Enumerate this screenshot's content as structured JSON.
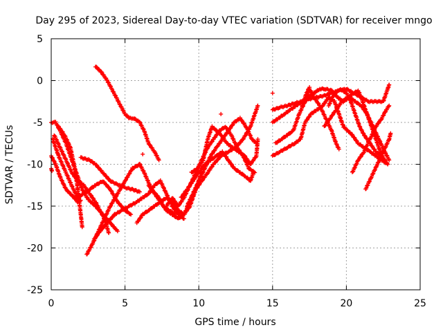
{
  "chart_data": {
    "type": "scatter",
    "title": "Day 295 of 2023, Sidereal Day-to-day VTEC variation (SDTVAR) for receiver mngo",
    "xlabel": "GPS time / hours",
    "ylabel": "SDTVAR / TECUs",
    "xlim": [
      0,
      25
    ],
    "ylim": [
      -25,
      5
    ],
    "xticks": [
      0,
      5,
      10,
      15,
      20,
      25
    ],
    "yticks": [
      -25,
      -20,
      -15,
      -10,
      -5,
      0,
      5
    ],
    "grid": true,
    "marker": "plus",
    "series_color": "#ff0000",
    "traces": [
      [
        [
          0.0,
          -5.0
        ],
        [
          0.3,
          -5.0
        ],
        [
          0.6,
          -6.0
        ],
        [
          1.0,
          -7.5
        ],
        [
          1.4,
          -9.5
        ],
        [
          1.8,
          -11.5
        ],
        [
          2.1,
          -13.0
        ],
        [
          2.5,
          -14.2
        ],
        [
          3.0,
          -15.0
        ],
        [
          3.5,
          -16.0
        ],
        [
          4.0,
          -17.0
        ],
        [
          4.5,
          -18.0
        ]
      ],
      [
        [
          0.1,
          -7.0
        ],
        [
          0.5,
          -9.0
        ],
        [
          1.0,
          -11.0
        ],
        [
          1.5,
          -13.0
        ],
        [
          1.8,
          -14.0
        ],
        [
          2.2,
          -13.5
        ],
        [
          2.6,
          -13.0
        ],
        [
          3.0,
          -12.5
        ],
        [
          3.5,
          -12.0
        ],
        [
          4.0,
          -13.0
        ],
        [
          4.5,
          -14.5
        ],
        [
          5.0,
          -15.5
        ],
        [
          5.4,
          -16.0
        ]
      ],
      [
        [
          0.0,
          -9.0
        ],
        [
          0.3,
          -10.0
        ],
        [
          0.6,
          -11.5
        ],
        [
          1.0,
          -13.0
        ],
        [
          1.4,
          -13.7
        ],
        [
          1.8,
          -14.5
        ],
        [
          2.0,
          -14.3
        ]
      ],
      [
        [
          0.5,
          -5.5
        ],
        [
          0.9,
          -6.5
        ],
        [
          1.3,
          -8.0
        ],
        [
          1.6,
          -10.5
        ],
        [
          1.8,
          -13.0
        ],
        [
          2.0,
          -16.0
        ],
        [
          2.1,
          -17.5
        ]
      ],
      [
        [
          0.2,
          -6.5
        ],
        [
          0.6,
          -8.0
        ],
        [
          1.0,
          -9.5
        ],
        [
          1.4,
          -11.0
        ],
        [
          1.8,
          -12.0
        ],
        [
          2.2,
          -12.5
        ],
        [
          2.6,
          -13.5
        ],
        [
          3.0,
          -14.5
        ],
        [
          3.3,
          -15.5
        ],
        [
          3.6,
          -16.5
        ],
        [
          3.9,
          -18.2
        ]
      ],
      [
        [
          0.0,
          -10.5
        ],
        [
          0.05,
          -10.8
        ]
      ],
      [
        [
          2.4,
          -20.8
        ],
        [
          2.8,
          -19.5
        ],
        [
          3.2,
          -18.0
        ],
        [
          3.6,
          -16.5
        ],
        [
          4.0,
          -15.0
        ],
        [
          4.5,
          -13.5
        ],
        [
          5.0,
          -12.0
        ],
        [
          5.5,
          -10.5
        ],
        [
          6.0,
          -10.0
        ],
        [
          6.3,
          -11.0
        ],
        [
          6.8,
          -13.0
        ],
        [
          7.3,
          -14.0
        ],
        [
          7.6,
          -15.0
        ],
        [
          8.0,
          -15.5
        ],
        [
          8.4,
          -16.0
        ]
      ],
      [
        [
          2.0,
          -9.2
        ],
        [
          2.6,
          -9.5
        ],
        [
          3.0,
          -10.0
        ],
        [
          3.5,
          -11.0
        ],
        [
          4.0,
          -12.0
        ],
        [
          4.6,
          -12.5
        ],
        [
          5.0,
          -12.8
        ],
        [
          5.5,
          -13.0
        ],
        [
          6.0,
          -13.3
        ]
      ],
      [
        [
          2.9,
          -19.0
        ],
        [
          3.3,
          -18.0
        ],
        [
          3.8,
          -17.0
        ],
        [
          4.3,
          -16.0
        ],
        [
          4.8,
          -15.5
        ],
        [
          5.3,
          -15.0
        ],
        [
          5.8,
          -14.5
        ],
        [
          6.2,
          -14.0
        ],
        [
          6.6,
          -13.5
        ],
        [
          7.0,
          -12.5
        ],
        [
          7.4,
          -12.0
        ],
        [
          7.8,
          -13.5
        ],
        [
          8.2,
          -15.0
        ],
        [
          8.6,
          -16.0
        ],
        [
          9.0,
          -16.5
        ]
      ],
      [
        [
          3.0,
          1.7
        ],
        [
          3.4,
          1.0
        ],
        [
          3.8,
          0.0
        ],
        [
          4.1,
          -1.0
        ],
        [
          4.4,
          -2.0
        ],
        [
          4.7,
          -3.0
        ],
        [
          5.0,
          -4.0
        ],
        [
          5.3,
          -4.5
        ],
        [
          5.6,
          -4.5
        ],
        [
          6.0,
          -5.0
        ],
        [
          6.3,
          -6.0
        ],
        [
          6.6,
          -7.5
        ],
        [
          7.0,
          -8.5
        ],
        [
          7.3,
          -9.5
        ]
      ],
      [
        [
          5.8,
          -17.0
        ],
        [
          6.2,
          -16.0
        ],
        [
          6.6,
          -15.5
        ],
        [
          7.0,
          -15.0
        ],
        [
          7.4,
          -14.5
        ],
        [
          7.8,
          -14.0
        ],
        [
          8.2,
          -14.5
        ],
        [
          8.6,
          -15.5
        ],
        [
          9.0,
          -16.0
        ],
        [
          9.4,
          -15.0
        ],
        [
          9.8,
          -13.0
        ],
        [
          10.2,
          -11.0
        ]
      ],
      [
        [
          6.6,
          -12.5
        ],
        [
          7.0,
          -13.5
        ],
        [
          7.4,
          -14.5
        ],
        [
          7.8,
          -15.5
        ],
        [
          8.2,
          -16.0
        ],
        [
          8.6,
          -16.5
        ],
        [
          9.0,
          -16.0
        ],
        [
          9.4,
          -14.5
        ],
        [
          9.8,
          -13.0
        ],
        [
          10.2,
          -12.0
        ],
        [
          10.6,
          -11.0
        ],
        [
          11.0,
          -10.0
        ],
        [
          11.5,
          -9.0
        ],
        [
          12.0,
          -8.5
        ],
        [
          12.5,
          -8.0
        ],
        [
          13.0,
          -7.0
        ],
        [
          13.5,
          -5.5
        ],
        [
          13.8,
          -4.0
        ],
        [
          14.0,
          -3.0
        ]
      ],
      [
        [
          7.8,
          -15.0
        ],
        [
          8.2,
          -14.0
        ],
        [
          8.6,
          -15.0
        ],
        [
          9.0,
          -14.0
        ],
        [
          9.4,
          -12.5
        ],
        [
          9.8,
          -11.0
        ],
        [
          10.2,
          -9.5
        ],
        [
          10.6,
          -8.0
        ],
        [
          11.0,
          -7.0
        ],
        [
          11.4,
          -6.0
        ],
        [
          11.8,
          -5.5
        ],
        [
          12.2,
          -6.5
        ],
        [
          12.6,
          -8.0
        ],
        [
          13.0,
          -9.0
        ],
        [
          13.4,
          -10.5
        ],
        [
          13.8,
          -11.0
        ]
      ],
      [
        [
          8.8,
          -14.0
        ],
        [
          9.2,
          -13.0
        ],
        [
          9.6,
          -12.0
        ],
        [
          10.0,
          -11.0
        ],
        [
          10.4,
          -10.0
        ],
        [
          10.8,
          -9.5
        ],
        [
          11.2,
          -9.0
        ],
        [
          11.6,
          -8.5
        ],
        [
          12.0,
          -9.5
        ],
        [
          12.4,
          -10.5
        ],
        [
          12.8,
          -11.0
        ],
        [
          13.2,
          -11.5
        ],
        [
          13.5,
          -12.0
        ],
        [
          13.7,
          -11.0
        ]
      ],
      [
        [
          9.2,
          -15.0
        ],
        [
          9.6,
          -13.5
        ],
        [
          10.0,
          -12.0
        ],
        [
          10.4,
          -10.5
        ],
        [
          10.8,
          -9.0
        ],
        [
          11.2,
          -8.0
        ],
        [
          11.6,
          -7.0
        ],
        [
          12.0,
          -6.0
        ],
        [
          12.4,
          -5.0
        ],
        [
          12.8,
          -4.5
        ],
        [
          13.2,
          -5.5
        ],
        [
          13.6,
          -7.0
        ],
        [
          13.9,
          -7.5
        ]
      ],
      [
        [
          9.5,
          -11.0
        ],
        [
          9.9,
          -10.5
        ],
        [
          10.3,
          -9.5
        ],
        [
          10.6,
          -7.0
        ],
        [
          10.9,
          -5.5
        ],
        [
          11.2,
          -6.0
        ],
        [
          11.5,
          -6.5
        ],
        [
          11.9,
          -7.5
        ],
        [
          12.3,
          -8.0
        ],
        [
          12.7,
          -8.5
        ],
        [
          13.1,
          -9.0
        ],
        [
          13.5,
          -10.0
        ],
        [
          13.9,
          -9.0
        ],
        [
          14.0,
          -7.0
        ]
      ],
      [
        [
          6.2,
          -8.8
        ]
      ],
      [
        [
          11.5,
          -4.0
        ]
      ],
      [
        [
          15.0,
          -1.5
        ]
      ],
      [
        [
          15.0,
          -9.0
        ],
        [
          15.5,
          -8.5
        ],
        [
          16.0,
          -8.0
        ],
        [
          16.5,
          -7.5
        ],
        [
          16.9,
          -7.0
        ],
        [
          17.2,
          -5.0
        ],
        [
          17.6,
          -4.0
        ],
        [
          18.0,
          -3.5
        ],
        [
          18.4,
          -3.0
        ],
        [
          18.8,
          -2.0
        ],
        [
          19.2,
          -2.5
        ],
        [
          19.5,
          -4.0
        ],
        [
          19.8,
          -5.5
        ],
        [
          20.1,
          -6.0
        ],
        [
          20.4,
          -6.5
        ],
        [
          20.8,
          -7.5
        ],
        [
          21.2,
          -8.0
        ],
        [
          21.6,
          -8.5
        ],
        [
          22.0,
          -9.0
        ],
        [
          22.4,
          -9.5
        ],
        [
          22.8,
          -10.0
        ]
      ],
      [
        [
          15.0,
          -5.0
        ],
        [
          15.4,
          -4.5
        ],
        [
          15.8,
          -4.0
        ],
        [
          16.2,
          -3.5
        ],
        [
          16.6,
          -3.0
        ],
        [
          17.0,
          -2.5
        ],
        [
          17.4,
          -2.0
        ],
        [
          17.8,
          -1.5
        ],
        [
          18.2,
          -1.0
        ],
        [
          18.6,
          -1.0
        ],
        [
          19.0,
          -1.2
        ],
        [
          19.4,
          -2.0
        ],
        [
          19.8,
          -2.5
        ],
        [
          20.2,
          -2.0
        ],
        [
          20.6,
          -2.5
        ],
        [
          21.0,
          -3.0
        ],
        [
          21.4,
          -4.0
        ],
        [
          21.8,
          -5.5
        ],
        [
          22.2,
          -7.0
        ],
        [
          22.6,
          -8.5
        ],
        [
          22.9,
          -9.5
        ]
      ],
      [
        [
          15.0,
          -3.5
        ],
        [
          15.5,
          -3.2
        ],
        [
          16.0,
          -3.0
        ],
        [
          16.5,
          -2.7
        ],
        [
          17.0,
          -2.5
        ],
        [
          17.5,
          -2.2
        ],
        [
          18.0,
          -2.0
        ],
        [
          18.5,
          -1.8
        ],
        [
          19.0,
          -1.5
        ],
        [
          19.5,
          -1.2
        ],
        [
          20.0,
          -1.0
        ],
        [
          20.5,
          -1.5
        ],
        [
          21.0,
          -2.0
        ],
        [
          21.5,
          -2.5
        ],
        [
          22.0,
          -2.5
        ],
        [
          22.5,
          -2.5
        ],
        [
          22.8,
          -1.0
        ],
        [
          22.9,
          -0.5
        ]
      ],
      [
        [
          15.2,
          -7.5
        ],
        [
          15.6,
          -7.0
        ],
        [
          16.0,
          -6.5
        ],
        [
          16.4,
          -6.0
        ],
        [
          16.8,
          -4.0
        ],
        [
          17.2,
          -2.5
        ],
        [
          17.5,
          -1.0
        ],
        [
          17.8,
          -2.0
        ],
        [
          18.2,
          -3.0
        ],
        [
          18.6,
          -4.5
        ],
        [
          19.0,
          -6.0
        ],
        [
          19.3,
          -7.5
        ],
        [
          19.5,
          -8.2
        ]
      ],
      [
        [
          17.0,
          -3.0
        ],
        [
          17.3,
          -1.5
        ],
        [
          17.5,
          -0.8
        ]
      ],
      [
        [
          18.8,
          -3.0
        ],
        [
          19.2,
          -1.5
        ],
        [
          19.6,
          -1.0
        ],
        [
          20.0,
          -1.5
        ],
        [
          20.3,
          -2.5
        ],
        [
          20.6,
          -4.0
        ],
        [
          20.9,
          -5.5
        ],
        [
          21.2,
          -6.5
        ],
        [
          21.6,
          -7.5
        ],
        [
          22.0,
          -8.5
        ],
        [
          22.4,
          -9.0
        ],
        [
          22.8,
          -10.0
        ]
      ],
      [
        [
          18.5,
          -5.5
        ],
        [
          18.9,
          -4.5
        ],
        [
          19.3,
          -3.5
        ],
        [
          19.7,
          -2.5
        ],
        [
          20.1,
          -2.0
        ],
        [
          20.5,
          -1.5
        ],
        [
          20.8,
          -1.2
        ],
        [
          21.0,
          -2.0
        ],
        [
          21.3,
          -3.5
        ],
        [
          21.6,
          -5.0
        ],
        [
          21.9,
          -6.5
        ],
        [
          22.2,
          -8.0
        ],
        [
          22.5,
          -9.5
        ]
      ],
      [
        [
          20.4,
          -11.0
        ],
        [
          20.8,
          -9.5
        ],
        [
          21.2,
          -8.5
        ],
        [
          21.6,
          -7.0
        ],
        [
          22.0,
          -5.5
        ],
        [
          22.4,
          -4.5
        ],
        [
          22.7,
          -3.5
        ],
        [
          22.9,
          -3.0
        ]
      ],
      [
        [
          21.3,
          -13.0
        ],
        [
          21.7,
          -11.5
        ],
        [
          22.1,
          -10.0
        ],
        [
          22.5,
          -8.5
        ],
        [
          22.9,
          -7.0
        ],
        [
          23.0,
          -6.3
        ]
      ]
    ]
  }
}
